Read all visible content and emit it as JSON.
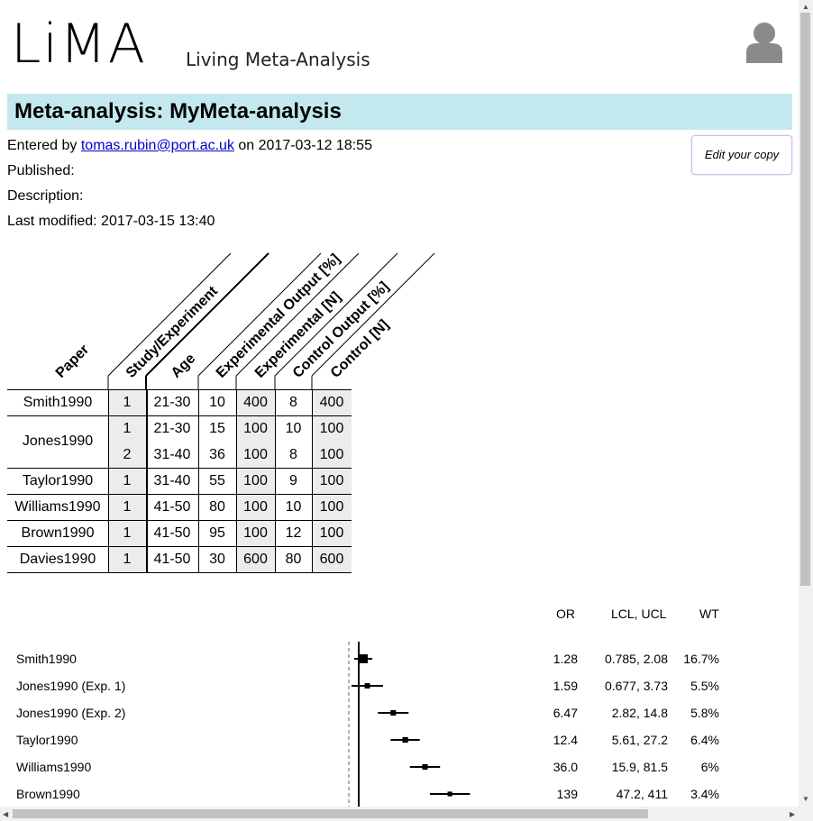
{
  "header": {
    "logo_text": "LiMA",
    "tagline": "Living Meta-Analysis"
  },
  "page": {
    "title": "Meta-analysis: MyMeta-analysis",
    "entered_prefix": "Entered by",
    "entered_email": "tomas.rubin@port.ac.uk",
    "entered_on": "on 2017-03-12 18:55",
    "published_label": "Published:",
    "description_label": "Description:",
    "last_modified": "Last modified: 2017-03-15 13:40",
    "edit_button": "Edit your copy"
  },
  "table": {
    "columns": [
      "Paper",
      "Study/Experiment",
      "Age",
      "Experimental Output [%]",
      "Experimental [N]",
      "Control Output [%]",
      "Control [N]"
    ],
    "rows": [
      {
        "paper": "Smith1990",
        "exp": "1",
        "age": "21-30",
        "eo": "10",
        "en": "400",
        "co": "8",
        "cn": "400"
      },
      {
        "paper": "Jones1990",
        "exp": "1",
        "age": "21-30",
        "eo": "15",
        "en": "100",
        "co": "10",
        "cn": "100"
      },
      {
        "paper": "",
        "exp": "2",
        "age": "31-40",
        "eo": "36",
        "en": "100",
        "co": "8",
        "cn": "100"
      },
      {
        "paper": "Taylor1990",
        "exp": "1",
        "age": "31-40",
        "eo": "55",
        "en": "100",
        "co": "9",
        "cn": "100"
      },
      {
        "paper": "Williams1990",
        "exp": "1",
        "age": "41-50",
        "eo": "80",
        "en": "100",
        "co": "10",
        "cn": "100"
      },
      {
        "paper": "Brown1990",
        "exp": "1",
        "age": "41-50",
        "eo": "95",
        "en": "100",
        "co": "12",
        "cn": "100"
      },
      {
        "paper": "Davies1990",
        "exp": "1",
        "age": "41-50",
        "eo": "30",
        "en": "600",
        "co": "80",
        "cn": "600"
      }
    ]
  },
  "forest": {
    "headers": {
      "or": "OR",
      "ci": "LCL, UCL",
      "wt": "WT"
    },
    "rows": [
      {
        "label": "Smith1990",
        "or": "1.28",
        "ci": "0.785, 2.08",
        "wt": "16.7%",
        "or_val": 1.28,
        "lcl": 0.785,
        "ucl": 2.08
      },
      {
        "label": "Jones1990 (Exp. 1)",
        "or": "1.59",
        "ci": "0.677, 3.73",
        "wt": "5.5%",
        "or_val": 1.59,
        "lcl": 0.677,
        "ucl": 3.73
      },
      {
        "label": "Jones1990 (Exp. 2)",
        "or": "6.47",
        "ci": "2.82, 14.8",
        "wt": "5.8%",
        "or_val": 6.47,
        "lcl": 2.82,
        "ucl": 14.8
      },
      {
        "label": "Taylor1990",
        "or": "12.4",
        "ci": "5.61, 27.2",
        "wt": "6.4%",
        "or_val": 12.4,
        "lcl": 5.61,
        "ucl": 27.2
      },
      {
        "label": "Williams1990",
        "or": "36.0",
        "ci": "15.9, 81.5",
        "wt": "6%",
        "or_val": 36.0,
        "lcl": 15.9,
        "ucl": 81.5
      },
      {
        "label": "Brown1990",
        "or": "139",
        "ci": "47.2, 411",
        "wt": "3.4%",
        "or_val": 139,
        "lcl": 47.2,
        "ucl": 411
      }
    ]
  },
  "colors": {
    "title_bg": "#c3e9ef",
    "link": "#0000cc"
  }
}
